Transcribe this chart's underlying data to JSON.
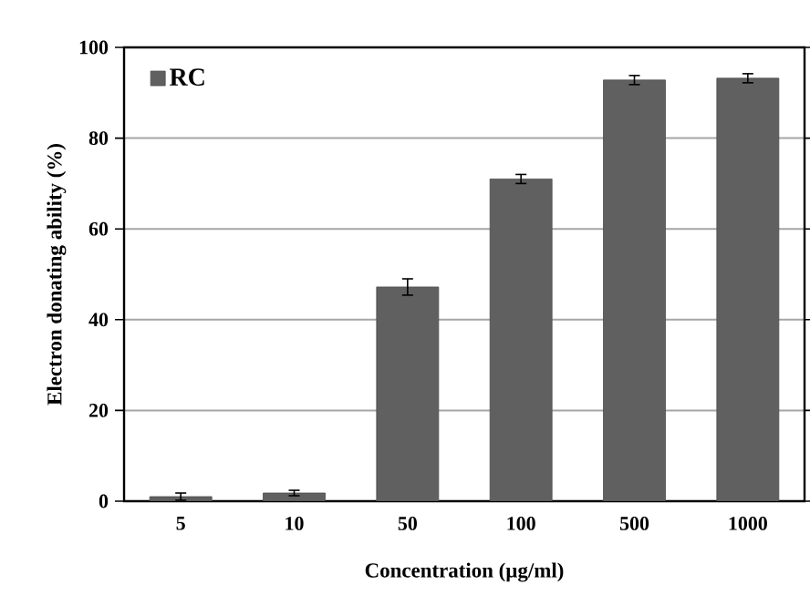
{
  "chart_data": {
    "type": "bar",
    "xlabel": "Concentration (µg/ml)",
    "ylabel": "Electron donating ability (%)",
    "categories": [
      "5",
      "10",
      "50",
      "100",
      "500",
      "1000"
    ],
    "series": [
      {
        "name": "RC",
        "color": "#606060",
        "values": [
          1.0,
          1.8,
          47.2,
          71.0,
          92.8,
          93.2
        ],
        "errors": [
          0.8,
          0.6,
          1.8,
          1.0,
          1.0,
          1.0
        ]
      }
    ],
    "ylim": [
      0,
      100
    ],
    "yticks": [
      0,
      20,
      40,
      60,
      80,
      100
    ],
    "grid": "y",
    "legend": "top left"
  }
}
